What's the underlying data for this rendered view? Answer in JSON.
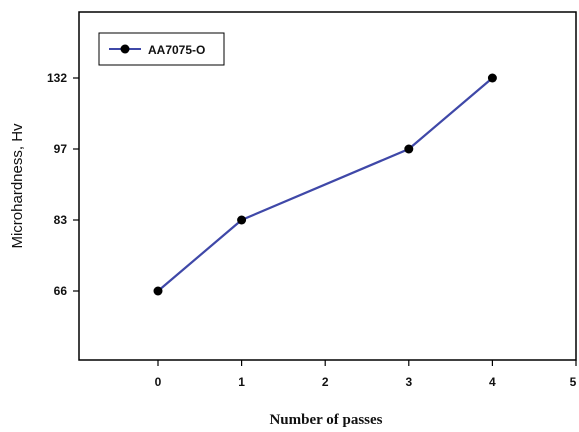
{
  "chart_data": {
    "type": "line",
    "title": "",
    "xlabel": "Number of passes",
    "ylabel": "Microhardness, Hv",
    "xlim": [
      -1,
      5
    ],
    "x_ticks": [
      "0",
      "1",
      "2",
      "3",
      "4",
      "5"
    ],
    "y_ticks": [
      "66",
      "83",
      "97",
      "132"
    ],
    "grid": false,
    "legend_position": "top-left",
    "series": [
      {
        "name": "AA7075-O",
        "x": [
          0,
          1,
          3,
          4
        ],
        "y": [
          66,
          83,
          97,
          132
        ],
        "color": "#3f48a8",
        "marker": "circle",
        "marker_color": "#000000"
      }
    ]
  }
}
